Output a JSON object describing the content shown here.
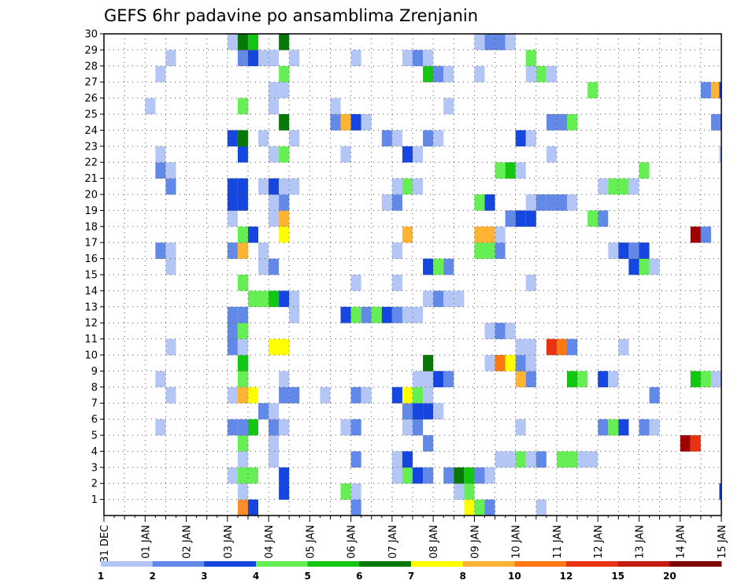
{
  "chart_data": {
    "type": "heatmap",
    "title": "GEFS 6hr padavine po ansamblima Zrenjanin",
    "x_ticks": [
      "31 DEC",
      "01 JAN",
      "02 JAN",
      "03 JAN",
      "04 JAN",
      "05 JAN",
      "06 JAN",
      "07 JAN",
      "08 JAN",
      "09 JAN",
      "10 JAN",
      "11 JAN",
      "12 JAN",
      "13 JAN",
      "14 JAN",
      "15 JAN"
    ],
    "y_ticks": [
      "1",
      "2",
      "3",
      "4",
      "5",
      "6",
      "7",
      "8",
      "9",
      "10",
      "11",
      "12",
      "13",
      "14",
      "15",
      "16",
      "17",
      "18",
      "19",
      "20",
      "21",
      "22",
      "23",
      "24",
      "25",
      "26",
      "27",
      "28",
      "29",
      "30"
    ],
    "x_range_days": [
      0,
      15
    ],
    "y_range": [
      0,
      30
    ],
    "grid": true,
    "steps_per_day": 4,
    "colorbar": {
      "labels": [
        "1",
        "2",
        "3",
        "4",
        "5",
        "6",
        "7",
        "8",
        "10",
        "12",
        "15",
        "20"
      ],
      "colors": [
        "#b3c6f5",
        "#6289e8",
        "#1646e0",
        "#66ee55",
        "#11c711",
        "#067806",
        "#ffff00",
        "#ffb333",
        "#ff7711",
        "#e83311",
        "#c41b0b",
        "#800000"
      ]
    },
    "cells": [
      [
        3.25,
        0,
        "#ff8c2a"
      ],
      [
        3.5,
        0,
        "#1646e0"
      ],
      [
        8.75,
        0,
        "#ffff00"
      ],
      [
        9.0,
        0,
        "#66ee55"
      ],
      [
        9.25,
        0,
        "#6289e8"
      ],
      [
        6.0,
        0,
        "#6289e8"
      ],
      [
        10.5,
        0,
        "#b3c6f5"
      ],
      [
        3.25,
        1,
        "#b3c6f5"
      ],
      [
        4.25,
        1,
        "#1646e0"
      ],
      [
        5.75,
        1,
        "#66ee55"
      ],
      [
        6.0,
        1,
        "#b3c6f5"
      ],
      [
        8.5,
        1,
        "#b3c6f5"
      ],
      [
        8.75,
        1,
        "#66ee55"
      ],
      [
        14.95,
        1,
        "#1646e0"
      ],
      [
        3.0,
        2,
        "#b3c6f5"
      ],
      [
        3.25,
        2,
        "#66ee55"
      ],
      [
        3.5,
        2,
        "#66ee55"
      ],
      [
        4.25,
        2,
        "#1646e0"
      ],
      [
        7.0,
        2,
        "#b3c6f5"
      ],
      [
        7.25,
        2,
        "#66ee55"
      ],
      [
        7.5,
        2,
        "#1646e0"
      ],
      [
        7.75,
        2,
        "#6289e8"
      ],
      [
        8.25,
        2,
        "#6289e8"
      ],
      [
        8.5,
        2,
        "#067806"
      ],
      [
        8.75,
        2,
        "#11c711"
      ],
      [
        9.0,
        2,
        "#6289e8"
      ],
      [
        9.25,
        2,
        "#b3c6f5"
      ],
      [
        3.25,
        3,
        "#b3c6f5"
      ],
      [
        4.0,
        3,
        "#b3c6f5"
      ],
      [
        6.0,
        3,
        "#6289e8"
      ],
      [
        7.0,
        3,
        "#b3c6f5"
      ],
      [
        7.25,
        3,
        "#1646e0"
      ],
      [
        9.5,
        3,
        "#b3c6f5"
      ],
      [
        9.75,
        3,
        "#b3c6f5"
      ],
      [
        10.0,
        3,
        "#66ee55"
      ],
      [
        10.25,
        3,
        "#b3c6f5"
      ],
      [
        10.5,
        3,
        "#6289e8"
      ],
      [
        11.0,
        3,
        "#66ee55"
      ],
      [
        11.25,
        3,
        "#66ee55"
      ],
      [
        11.5,
        3,
        "#b3c6f5"
      ],
      [
        11.75,
        3,
        "#b3c6f5"
      ],
      [
        3.25,
        4,
        "#66ee55"
      ],
      [
        4.0,
        4,
        "#b3c6f5"
      ],
      [
        7.75,
        4,
        "#6289e8"
      ],
      [
        14.0,
        4,
        "#a00000"
      ],
      [
        14.25,
        4,
        "#e83311"
      ],
      [
        1.25,
        5,
        "#b3c6f5"
      ],
      [
        3.0,
        5,
        "#6289e8"
      ],
      [
        3.25,
        5,
        "#6289e8"
      ],
      [
        3.5,
        5,
        "#11c711"
      ],
      [
        4.0,
        5,
        "#6289e8"
      ],
      [
        4.25,
        5,
        "#b3c6f5"
      ],
      [
        5.75,
        5,
        "#b3c6f5"
      ],
      [
        6.0,
        5,
        "#6289e8"
      ],
      [
        7.25,
        5,
        "#b3c6f5"
      ],
      [
        7.5,
        5,
        "#6289e8"
      ],
      [
        10.0,
        5,
        "#b3c6f5"
      ],
      [
        12.0,
        5,
        "#6289e8"
      ],
      [
        12.25,
        5,
        "#66ee55"
      ],
      [
        12.5,
        5,
        "#1646e0"
      ],
      [
        13.0,
        5,
        "#6289e8"
      ],
      [
        13.25,
        5,
        "#b3c6f5"
      ],
      [
        3.75,
        6,
        "#6289e8"
      ],
      [
        4.0,
        6,
        "#b3c6f5"
      ],
      [
        7.25,
        6,
        "#6289e8"
      ],
      [
        7.5,
        6,
        "#1646e0"
      ],
      [
        7.75,
        6,
        "#1646e0"
      ],
      [
        8.0,
        6,
        "#b3c6f5"
      ],
      [
        1.5,
        7,
        "#b3c6f5"
      ],
      [
        3.0,
        7,
        "#b3c6f5"
      ],
      [
        3.25,
        7,
        "#ffb333"
      ],
      [
        3.5,
        7,
        "#ffff00"
      ],
      [
        4.25,
        7,
        "#6289e8"
      ],
      [
        4.5,
        7,
        "#6289e8"
      ],
      [
        5.25,
        7,
        "#b3c6f5"
      ],
      [
        6.0,
        7,
        "#6289e8"
      ],
      [
        6.25,
        7,
        "#b3c6f5"
      ],
      [
        7.0,
        7,
        "#1646e0"
      ],
      [
        7.25,
        7,
        "#ffff00"
      ],
      [
        7.5,
        7,
        "#66ee55"
      ],
      [
        7.75,
        7,
        "#b3c6f5"
      ],
      [
        13.25,
        7,
        "#6289e8"
      ],
      [
        1.25,
        8,
        "#b3c6f5"
      ],
      [
        3.25,
        8,
        "#66ee55"
      ],
      [
        4.25,
        8,
        "#b3c6f5"
      ],
      [
        7.5,
        8,
        "#b3c6f5"
      ],
      [
        7.75,
        8,
        "#b3c6f5"
      ],
      [
        8.0,
        8,
        "#1646e0"
      ],
      [
        8.25,
        8,
        "#6289e8"
      ],
      [
        10.0,
        8,
        "#ffb333"
      ],
      [
        10.25,
        8,
        "#6289e8"
      ],
      [
        11.25,
        8,
        "#11c711"
      ],
      [
        11.5,
        8,
        "#66ee55"
      ],
      [
        12.0,
        8,
        "#1646e0"
      ],
      [
        12.25,
        8,
        "#b3c6f5"
      ],
      [
        14.25,
        8,
        "#11c711"
      ],
      [
        14.5,
        8,
        "#66ee55"
      ],
      [
        14.75,
        8,
        "#b3c6f5"
      ],
      [
        3.25,
        9,
        "#11c711"
      ],
      [
        7.75,
        9,
        "#067806"
      ],
      [
        9.25,
        9,
        "#b3c6f5"
      ],
      [
        9.5,
        9,
        "#ff7711"
      ],
      [
        9.75,
        9,
        "#ffff00"
      ],
      [
        10.0,
        9,
        "#6289e8"
      ],
      [
        10.25,
        9,
        "#b3c6f5"
      ],
      [
        1.5,
        10,
        "#b3c6f5"
      ],
      [
        3.0,
        10,
        "#6289e8"
      ],
      [
        3.25,
        10,
        "#b3c6f5"
      ],
      [
        4.0,
        10,
        "#ffff00"
      ],
      [
        4.25,
        10,
        "#ffff00"
      ],
      [
        10.0,
        10,
        "#b3c6f5"
      ],
      [
        10.25,
        10,
        "#b3c6f5"
      ],
      [
        10.75,
        10,
        "#e83311"
      ],
      [
        11.0,
        10,
        "#ff7711"
      ],
      [
        11.25,
        10,
        "#6289e8"
      ],
      [
        12.5,
        10,
        "#b3c6f5"
      ],
      [
        3.0,
        11,
        "#6289e8"
      ],
      [
        3.25,
        11,
        "#66ee55"
      ],
      [
        9.25,
        11,
        "#b3c6f5"
      ],
      [
        9.5,
        11,
        "#6289e8"
      ],
      [
        9.75,
        11,
        "#b3c6f5"
      ],
      [
        3.0,
        12,
        "#6289e8"
      ],
      [
        3.25,
        12,
        "#6289e8"
      ],
      [
        4.5,
        12,
        "#b3c6f5"
      ],
      [
        5.75,
        12,
        "#1646e0"
      ],
      [
        6.0,
        12,
        "#66ee55"
      ],
      [
        6.25,
        12,
        "#6289e8"
      ],
      [
        6.5,
        12,
        "#66ee55"
      ],
      [
        6.75,
        12,
        "#1646e0"
      ],
      [
        7.0,
        12,
        "#6289e8"
      ],
      [
        7.25,
        12,
        "#b3c6f5"
      ],
      [
        7.5,
        12,
        "#b3c6f5"
      ],
      [
        3.5,
        13,
        "#66ee55"
      ],
      [
        3.75,
        13,
        "#66ee55"
      ],
      [
        4.0,
        13,
        "#11c711"
      ],
      [
        4.25,
        13,
        "#1646e0"
      ],
      [
        4.5,
        13,
        "#b3c6f5"
      ],
      [
        7.75,
        13,
        "#b3c6f5"
      ],
      [
        8.0,
        13,
        "#6289e8"
      ],
      [
        8.25,
        13,
        "#b3c6f5"
      ],
      [
        8.5,
        13,
        "#b3c6f5"
      ],
      [
        3.25,
        14,
        "#66ee55"
      ],
      [
        6.0,
        14,
        "#b3c6f5"
      ],
      [
        7.0,
        14,
        "#b3c6f5"
      ],
      [
        10.25,
        14,
        "#b3c6f5"
      ],
      [
        1.5,
        15,
        "#b3c6f5"
      ],
      [
        3.75,
        15,
        "#b3c6f5"
      ],
      [
        4.0,
        15,
        "#6289e8"
      ],
      [
        7.75,
        15,
        "#1646e0"
      ],
      [
        8.0,
        15,
        "#66ee55"
      ],
      [
        8.25,
        15,
        "#6289e8"
      ],
      [
        12.75,
        15,
        "#1646e0"
      ],
      [
        13.0,
        15,
        "#66ee55"
      ],
      [
        13.25,
        15,
        "#b3c6f5"
      ],
      [
        1.25,
        16,
        "#6289e8"
      ],
      [
        1.5,
        16,
        "#b3c6f5"
      ],
      [
        3.0,
        16,
        "#6289e8"
      ],
      [
        3.25,
        16,
        "#ffb333"
      ],
      [
        3.75,
        16,
        "#b3c6f5"
      ],
      [
        7.0,
        16,
        "#b3c6f5"
      ],
      [
        9.0,
        16,
        "#66ee55"
      ],
      [
        9.25,
        16,
        "#66ee55"
      ],
      [
        9.5,
        16,
        "#6289e8"
      ],
      [
        12.25,
        16,
        "#b3c6f5"
      ],
      [
        12.5,
        16,
        "#1646e0"
      ],
      [
        12.75,
        16,
        "#6289e8"
      ],
      [
        13.0,
        16,
        "#1646e0"
      ],
      [
        3.25,
        17,
        "#66ee55"
      ],
      [
        3.5,
        17,
        "#1646e0"
      ],
      [
        4.25,
        17,
        "#ffff00"
      ],
      [
        7.25,
        17,
        "#ffb333"
      ],
      [
        9.0,
        17,
        "#ffb333"
      ],
      [
        9.25,
        17,
        "#ffb333"
      ],
      [
        9.5,
        17,
        "#b3c6f5"
      ],
      [
        14.25,
        17,
        "#a00000"
      ],
      [
        14.5,
        17,
        "#6289e8"
      ],
      [
        4.0,
        18,
        "#b3c6f5"
      ],
      [
        4.25,
        18,
        "#ffb333"
      ],
      [
        3.0,
        18,
        "#b3c6f5"
      ],
      [
        9.75,
        18,
        "#6289e8"
      ],
      [
        10.0,
        18,
        "#1646e0"
      ],
      [
        10.25,
        18,
        "#1646e0"
      ],
      [
        11.75,
        18,
        "#66ee55"
      ],
      [
        12.0,
        18,
        "#6289e8"
      ],
      [
        3.0,
        19,
        "#1646e0"
      ],
      [
        3.25,
        19,
        "#1646e0"
      ],
      [
        4.0,
        19,
        "#b3c6f5"
      ],
      [
        4.25,
        19,
        "#6289e8"
      ],
      [
        6.75,
        19,
        "#b3c6f5"
      ],
      [
        7.0,
        19,
        "#6289e8"
      ],
      [
        9.0,
        19,
        "#66ee55"
      ],
      [
        9.25,
        19,
        "#1646e0"
      ],
      [
        10.25,
        19,
        "#b3c6f5"
      ],
      [
        10.5,
        19,
        "#6289e8"
      ],
      [
        10.75,
        19,
        "#6289e8"
      ],
      [
        11.0,
        19,
        "#6289e8"
      ],
      [
        11.25,
        19,
        "#b3c6f5"
      ],
      [
        1.5,
        20,
        "#6289e8"
      ],
      [
        3.0,
        20,
        "#1646e0"
      ],
      [
        3.25,
        20,
        "#1646e0"
      ],
      [
        3.75,
        20,
        "#b3c6f5"
      ],
      [
        4.0,
        20,
        "#1646e0"
      ],
      [
        4.25,
        20,
        "#b3c6f5"
      ],
      [
        4.5,
        20,
        "#b3c6f5"
      ],
      [
        7.0,
        20,
        "#b3c6f5"
      ],
      [
        7.25,
        20,
        "#66ee55"
      ],
      [
        7.5,
        20,
        "#b3c6f5"
      ],
      [
        12.0,
        20,
        "#b3c6f5"
      ],
      [
        12.25,
        20,
        "#66ee55"
      ],
      [
        12.5,
        20,
        "#66ee55"
      ],
      [
        12.75,
        20,
        "#b3c6f5"
      ],
      [
        1.25,
        21,
        "#6289e8"
      ],
      [
        1.5,
        21,
        "#b3c6f5"
      ],
      [
        9.5,
        21,
        "#66ee55"
      ],
      [
        9.75,
        21,
        "#11c711"
      ],
      [
        10.0,
        21,
        "#b3c6f5"
      ],
      [
        13.0,
        21,
        "#66ee55"
      ],
      [
        1.25,
        22,
        "#b3c6f5"
      ],
      [
        3.25,
        22,
        "#1646e0"
      ],
      [
        4.0,
        22,
        "#b3c6f5"
      ],
      [
        4.25,
        22,
        "#66ee55"
      ],
      [
        5.75,
        22,
        "#b3c6f5"
      ],
      [
        7.25,
        22,
        "#1646e0"
      ],
      [
        7.5,
        22,
        "#b3c6f5"
      ],
      [
        10.75,
        22,
        "#b3c6f5"
      ],
      [
        14.95,
        22,
        "#b3c6f5"
      ],
      [
        3.0,
        23,
        "#1646e0"
      ],
      [
        3.25,
        23,
        "#067806"
      ],
      [
        3.75,
        23,
        "#b3c6f5"
      ],
      [
        4.5,
        23,
        "#b3c6f5"
      ],
      [
        6.75,
        23,
        "#6289e8"
      ],
      [
        7.0,
        23,
        "#b3c6f5"
      ],
      [
        7.75,
        23,
        "#6289e8"
      ],
      [
        8.0,
        23,
        "#b3c6f5"
      ],
      [
        10.0,
        23,
        "#1646e0"
      ],
      [
        10.25,
        23,
        "#b3c6f5"
      ],
      [
        4.25,
        24,
        "#067806"
      ],
      [
        5.5,
        24,
        "#6289e8"
      ],
      [
        5.75,
        24,
        "#ffb333"
      ],
      [
        6.0,
        24,
        "#1646e0"
      ],
      [
        6.25,
        24,
        "#b3c6f5"
      ],
      [
        10.75,
        24,
        "#6289e8"
      ],
      [
        11.0,
        24,
        "#6289e8"
      ],
      [
        11.25,
        24,
        "#66ee55"
      ],
      [
        14.75,
        24,
        "#6289e8"
      ],
      [
        1.0,
        25,
        "#b3c6f5"
      ],
      [
        3.25,
        25,
        "#66ee55"
      ],
      [
        4.0,
        25,
        "#b3c6f5"
      ],
      [
        5.5,
        25,
        "#b3c6f5"
      ],
      [
        8.25,
        25,
        "#b3c6f5"
      ],
      [
        4.0,
        26,
        "#b3c6f5"
      ],
      [
        4.25,
        26,
        "#b3c6f5"
      ],
      [
        11.75,
        26,
        "#66ee55"
      ],
      [
        14.5,
        26,
        "#6289e8"
      ],
      [
        14.75,
        26,
        "#ffb333"
      ],
      [
        14.95,
        26,
        "#1646e0"
      ],
      [
        1.25,
        27,
        "#b3c6f5"
      ],
      [
        4.25,
        27,
        "#66ee55"
      ],
      [
        7.75,
        27,
        "#11c711"
      ],
      [
        8.0,
        27,
        "#6289e8"
      ],
      [
        8.25,
        27,
        "#b3c6f5"
      ],
      [
        9.0,
        27,
        "#b3c6f5"
      ],
      [
        10.25,
        27,
        "#b3c6f5"
      ],
      [
        10.5,
        27,
        "#66ee55"
      ],
      [
        10.75,
        27,
        "#b3c6f5"
      ],
      [
        1.5,
        28,
        "#b3c6f5"
      ],
      [
        3.25,
        28,
        "#6289e8"
      ],
      [
        3.5,
        28,
        "#1646e0"
      ],
      [
        3.75,
        28,
        "#b3c6f5"
      ],
      [
        4.0,
        28,
        "#b3c6f5"
      ],
      [
        4.5,
        28,
        "#b3c6f5"
      ],
      [
        6.0,
        28,
        "#b3c6f5"
      ],
      [
        7.25,
        28,
        "#b3c6f5"
      ],
      [
        7.5,
        28,
        "#6289e8"
      ],
      [
        7.75,
        28,
        "#b3c6f5"
      ],
      [
        10.25,
        28,
        "#66ee55"
      ],
      [
        3.0,
        29,
        "#b3c6f5"
      ],
      [
        3.25,
        29,
        "#067806"
      ],
      [
        3.5,
        29,
        "#11c711"
      ],
      [
        4.25,
        29,
        "#067806"
      ],
      [
        9.0,
        29,
        "#b3c6f5"
      ],
      [
        9.25,
        29,
        "#6289e8"
      ],
      [
        9.5,
        29,
        "#6289e8"
      ],
      [
        9.75,
        29,
        "#b3c6f5"
      ]
    ]
  }
}
